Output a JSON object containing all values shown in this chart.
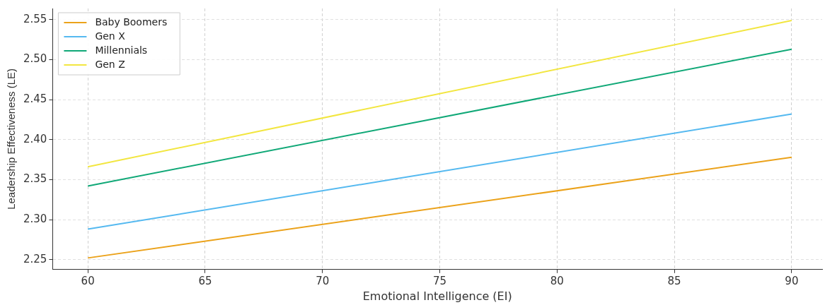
{
  "chart_data": {
    "type": "line",
    "xlabel": "Emotional Intelligence (EI)",
    "ylabel": "Leadership Effectiveness (LE)",
    "x": [
      60,
      90
    ],
    "series": [
      {
        "name": "Baby Boomers",
        "color": "#eba21a",
        "values": [
          2.252,
          2.378
        ]
      },
      {
        "name": "Gen X",
        "color": "#55b9f0",
        "values": [
          2.288,
          2.432
        ]
      },
      {
        "name": "Millennials",
        "color": "#10a877",
        "values": [
          2.342,
          2.513
        ]
      },
      {
        "name": "Gen Z",
        "color": "#f2e640",
        "values": [
          2.366,
          2.549
        ]
      }
    ],
    "xlim": [
      58.5,
      91.3
    ],
    "xticks": [
      60,
      65,
      70,
      75,
      80,
      85,
      90
    ],
    "ylim": [
      2.2375,
      2.564
    ],
    "yticks": [
      2.25,
      {
        "value": 2.3,
        "label": "2.30"
      },
      2.35,
      {
        "value": 2.4,
        "label": "2.40"
      },
      2.45,
      {
        "value": 2.5,
        "label": "2.50"
      },
      2.55
    ],
    "grid": true,
    "legend": "top left",
    "marker": "none",
    "line_style": "solid"
  }
}
